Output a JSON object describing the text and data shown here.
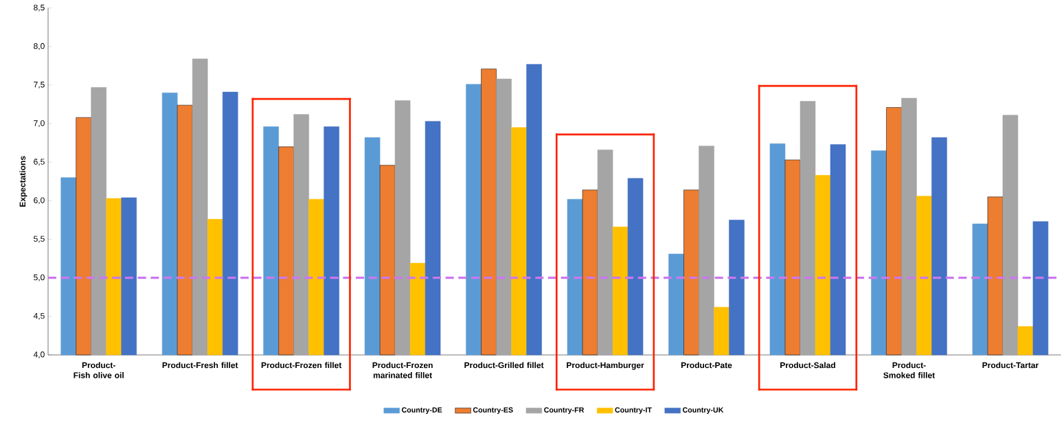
{
  "chart_data": {
    "type": "bar",
    "ylabel": "Expectations",
    "categories": [
      "Product-Fish olive oil",
      "Product-Fresh fillet",
      "Product-Frozen fillet",
      "Product-Frozen marinated fillet",
      "Product-Grilled fillet",
      "Product-Hamburger",
      "Product-Pate",
      "Product-Salad",
      "Product-Smoked fillet",
      "Product-Tartar"
    ],
    "series": [
      {
        "name": "Country-DE",
        "color": "#5b9bd5",
        "values": [
          6.3,
          7.4,
          6.96,
          6.82,
          7.51,
          6.02,
          5.31,
          6.74,
          6.65,
          5.7
        ]
      },
      {
        "name": "Country-ES",
        "color": "#ed7d31",
        "values": [
          7.08,
          7.24,
          6.7,
          6.46,
          7.71,
          6.14,
          6.14,
          6.53,
          7.21,
          6.05
        ]
      },
      {
        "name": "Country-FR",
        "color": "#a5a5a5",
        "values": [
          7.47,
          7.84,
          7.12,
          7.3,
          7.58,
          6.66,
          6.71,
          7.29,
          7.33,
          7.11
        ]
      },
      {
        "name": "Country-IT",
        "color": "#ffc000",
        "values": [
          6.03,
          5.76,
          6.02,
          5.19,
          6.95,
          5.66,
          4.62,
          6.33,
          6.06,
          4.37
        ]
      },
      {
        "name": "Country-UK",
        "color": "#4472c4",
        "values": [
          6.04,
          7.41,
          6.96,
          7.03,
          7.77,
          6.29,
          5.75,
          6.73,
          6.82,
          5.73
        ]
      }
    ],
    "ylim": [
      4.0,
      8.5
    ],
    "yticks": [
      {
        "value": 4.0,
        "label": "4,0"
      },
      {
        "value": 4.5,
        "label": "4,5"
      },
      {
        "value": 5.0,
        "label": "5,0"
      },
      {
        "value": 5.5,
        "label": "5,5"
      },
      {
        "value": 6.0,
        "label": "6,0"
      },
      {
        "value": 6.5,
        "label": "6,5"
      },
      {
        "value": 7.0,
        "label": "7,0"
      },
      {
        "value": 7.5,
        "label": "7,5"
      },
      {
        "value": 8.0,
        "label": "8,0"
      },
      {
        "value": 8.5,
        "label": "8,5"
      }
    ],
    "ref_lines": [
      {
        "axis": "y",
        "value": 5.0,
        "color": "#cc77ee",
        "line_style": "dashed"
      }
    ],
    "grid": false,
    "legend": "bottom"
  }
}
